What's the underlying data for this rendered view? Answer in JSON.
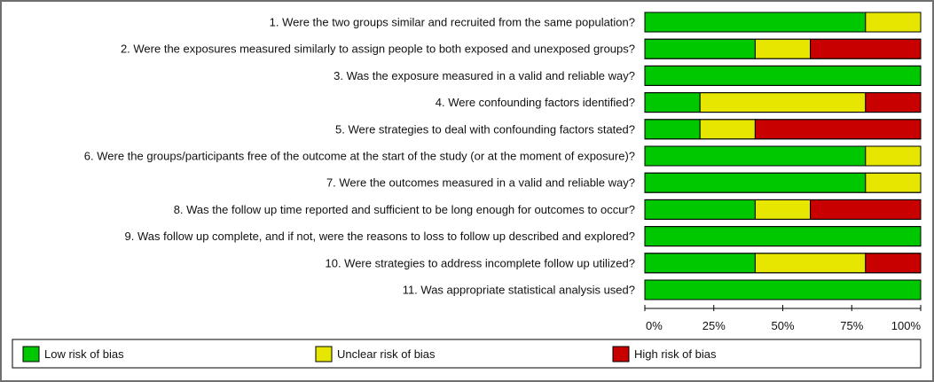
{
  "chart_data": {
    "type": "bar",
    "orientation": "horizontal",
    "stacked": true,
    "categories": [
      "1. Were the two groups similar and recruited from the same population?",
      "2. Were the exposures measured similarly to assign people to both exposed and unexposed groups?",
      "3. Was the exposure measured in a valid and reliable way?",
      "4. Were confounding factors identified?",
      "5. Were strategies to deal with confounding factors stated?",
      "6. Were the groups/participants free of the outcome at the start of the study (or at the moment of exposure)?",
      "7. Were the outcomes measured in a valid and reliable way?",
      "8. Was the follow up time reported and sufficient to be long enough for outcomes to occur?",
      "9. Was follow up complete, and if not, were the reasons to loss to follow up described and explored?",
      "10. Were strategies to address incomplete follow up utilized?",
      "11. Was appropriate statistical analysis used?"
    ],
    "series": [
      {
        "name": "Low risk of bias",
        "color": "#00c800",
        "values": [
          80,
          40,
          100,
          20,
          20,
          80,
          80,
          40,
          100,
          40,
          100
        ]
      },
      {
        "name": "Unclear risk of bias",
        "color": "#e6e600",
        "values": [
          20,
          20,
          0,
          60,
          20,
          20,
          20,
          20,
          0,
          40,
          0
        ]
      },
      {
        "name": "High risk of bias",
        "color": "#c80000",
        "values": [
          0,
          40,
          0,
          20,
          60,
          0,
          0,
          40,
          0,
          20,
          0
        ]
      }
    ],
    "xlim": [
      0,
      100
    ],
    "xticks": [
      "0%",
      "25%",
      "50%",
      "75%",
      "100%"
    ],
    "xtick_values": [
      0,
      25,
      50,
      75,
      100
    ],
    "legend_position": "bottom",
    "grid": false
  }
}
